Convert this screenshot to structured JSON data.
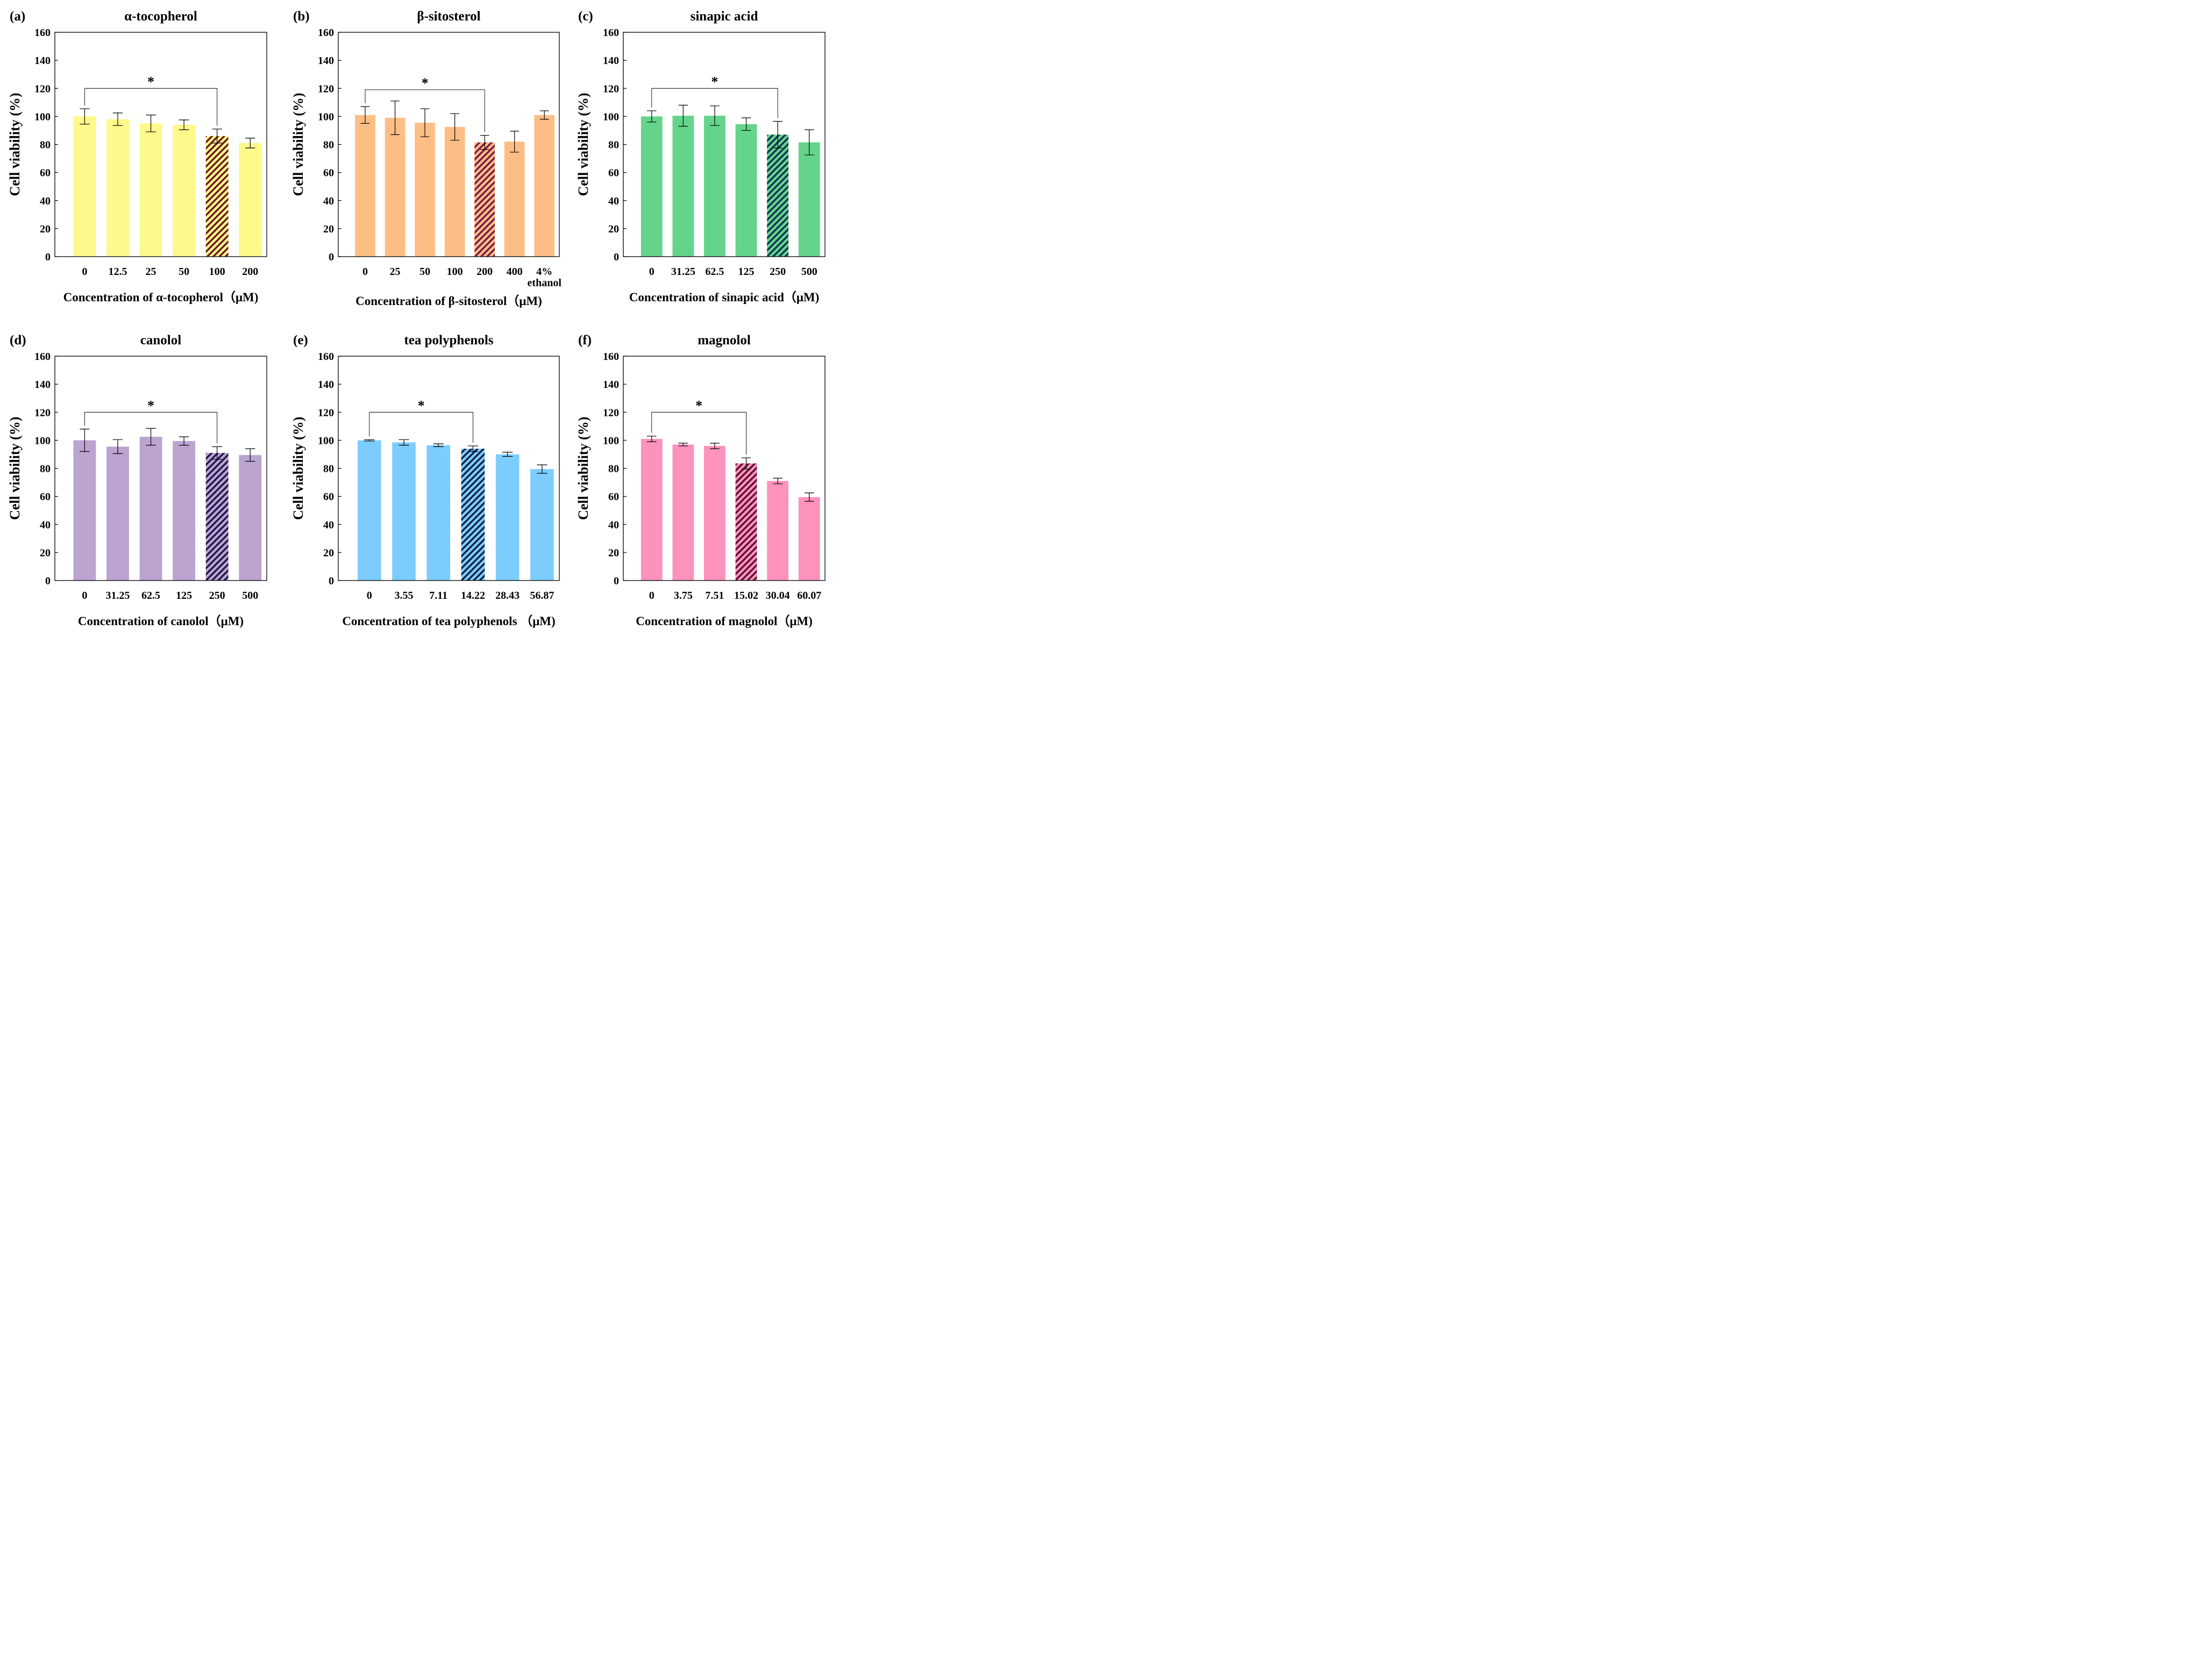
{
  "colors": {
    "yellow": "#fdf98a",
    "orange": "#fdbe86",
    "green": "#65d48b",
    "purple": "#bba4d0",
    "blue": "#7ccdfd",
    "pink": "#fd92bc"
  },
  "chart_data": [
    {
      "panel_label": "(a)",
      "type": "bar",
      "title": "α-tocopherol",
      "xlabel": "Concentration of α-tocopherol（μM)",
      "ylabel": "Cell viability (%)",
      "ylim": [
        0,
        160
      ],
      "yticks": [
        "0",
        "20",
        "40",
        "60",
        "80",
        "100",
        "120",
        "140",
        "160"
      ],
      "categories": [
        "0",
        "12.5",
        "25",
        "50",
        "100",
        "200"
      ],
      "values": [
        100,
        98,
        95,
        94,
        86,
        81
      ],
      "errors": [
        5.5,
        4.5,
        6,
        3.5,
        5,
        3.5
      ],
      "highlight_index": 4,
      "color_key": "yellow",
      "hatch_color": "#6b1320",
      "significance": {
        "from": 0,
        "to": 4,
        "y": 120,
        "label": "*"
      }
    },
    {
      "panel_label": "(b)",
      "type": "bar",
      "title": "β-sitosterol",
      "xlabel": "Concentration of β-sitosterol（μM)",
      "ylabel": "Cell viability (%)",
      "ylim": [
        0,
        160
      ],
      "yticks": [
        "0",
        "20",
        "40",
        "60",
        "80",
        "100",
        "120",
        "140",
        "160"
      ],
      "categories": [
        "0",
        "25",
        "50",
        "100",
        "200",
        "400",
        "4%\nethanol"
      ],
      "values": [
        101,
        99,
        95.5,
        92.5,
        81.5,
        82,
        101
      ],
      "errors": [
        6,
        12,
        10,
        9.5,
        5,
        7.5,
        3
      ],
      "highlight_index": 4,
      "color_key": "orange",
      "hatch_color": "#7a1640",
      "significance": {
        "from": 0,
        "to": 4,
        "y": 119,
        "label": "*"
      }
    },
    {
      "panel_label": "(c)",
      "type": "bar",
      "title": "sinapic acid",
      "xlabel": "Concentration of  sinapic acid（μM)",
      "ylabel": "Cell viability (%)",
      "ylim": [
        0,
        160
      ],
      "yticks": [
        "0",
        "20",
        "40",
        "60",
        "80",
        "100",
        "120",
        "140",
        "160"
      ],
      "categories": [
        "0",
        "31.25",
        "62.5",
        "125",
        "250",
        "500"
      ],
      "values": [
        100,
        100.5,
        100.5,
        94.5,
        87,
        81.5
      ],
      "errors": [
        4,
        7.5,
        7,
        4.5,
        9.5,
        9
      ],
      "highlight_index": 4,
      "color_key": "green",
      "hatch_color": "#0f2f52",
      "significance": {
        "from": 0,
        "to": 4,
        "y": 120,
        "label": "*"
      }
    },
    {
      "panel_label": "(d)",
      "type": "bar",
      "title": "canolol",
      "xlabel": "Concentration of  canolol（μM)",
      "ylabel": "Cell viability (%)",
      "ylim": [
        0,
        160
      ],
      "yticks": [
        "0",
        "20",
        "40",
        "60",
        "80",
        "100",
        "120",
        "140",
        "160"
      ],
      "categories": [
        "0",
        "31.25",
        "62.5",
        "125",
        "250",
        "500"
      ],
      "values": [
        100,
        95.5,
        102.5,
        99.5,
        91,
        89.5
      ],
      "errors": [
        8,
        5,
        6,
        3,
        4.5,
        4.5
      ],
      "highlight_index": 4,
      "color_key": "purple",
      "hatch_color": "#20124d",
      "significance": {
        "from": 0,
        "to": 4,
        "y": 120,
        "label": "*"
      }
    },
    {
      "panel_label": "(e)",
      "type": "bar",
      "title": "tea polyphenols",
      "xlabel": "Concentration of   tea polyphenols  （μM)",
      "ylabel": "Cell viability (%)",
      "ylim": [
        0,
        160
      ],
      "yticks": [
        "0",
        "20",
        "40",
        "60",
        "80",
        "100",
        "120",
        "140",
        "160"
      ],
      "categories": [
        "0",
        "3.55",
        "7.11",
        "14.22",
        "28.43",
        "56.87"
      ],
      "values": [
        100,
        98.5,
        96.5,
        94,
        90,
        79.5
      ],
      "errors": [
        0.5,
        2,
        1,
        2,
        1.5,
        3
      ],
      "highlight_index": 3,
      "color_key": "blue",
      "hatch_color": "#0f1f45",
      "significance": {
        "from": 0,
        "to": 3,
        "y": 120,
        "label": "*"
      }
    },
    {
      "panel_label": "(f)",
      "type": "bar",
      "title": "magnolol",
      "xlabel": "Concentration of magnolol（μM)",
      "ylabel": "Cell viability (%)",
      "ylim": [
        0,
        160
      ],
      "yticks": [
        "0",
        "20",
        "40",
        "60",
        "80",
        "100",
        "120",
        "140",
        "160"
      ],
      "categories": [
        "0",
        "3.75",
        "7.51",
        "15.02",
        "30.04",
        "60.07"
      ],
      "values": [
        101,
        97,
        96,
        83.5,
        71,
        59.5
      ],
      "errors": [
        2,
        1,
        2,
        4,
        2,
        3
      ],
      "highlight_index": 3,
      "color_key": "pink",
      "hatch_color": "#5a0f30",
      "significance": {
        "from": 0,
        "to": 3,
        "y": 120,
        "label": "*"
      }
    }
  ]
}
